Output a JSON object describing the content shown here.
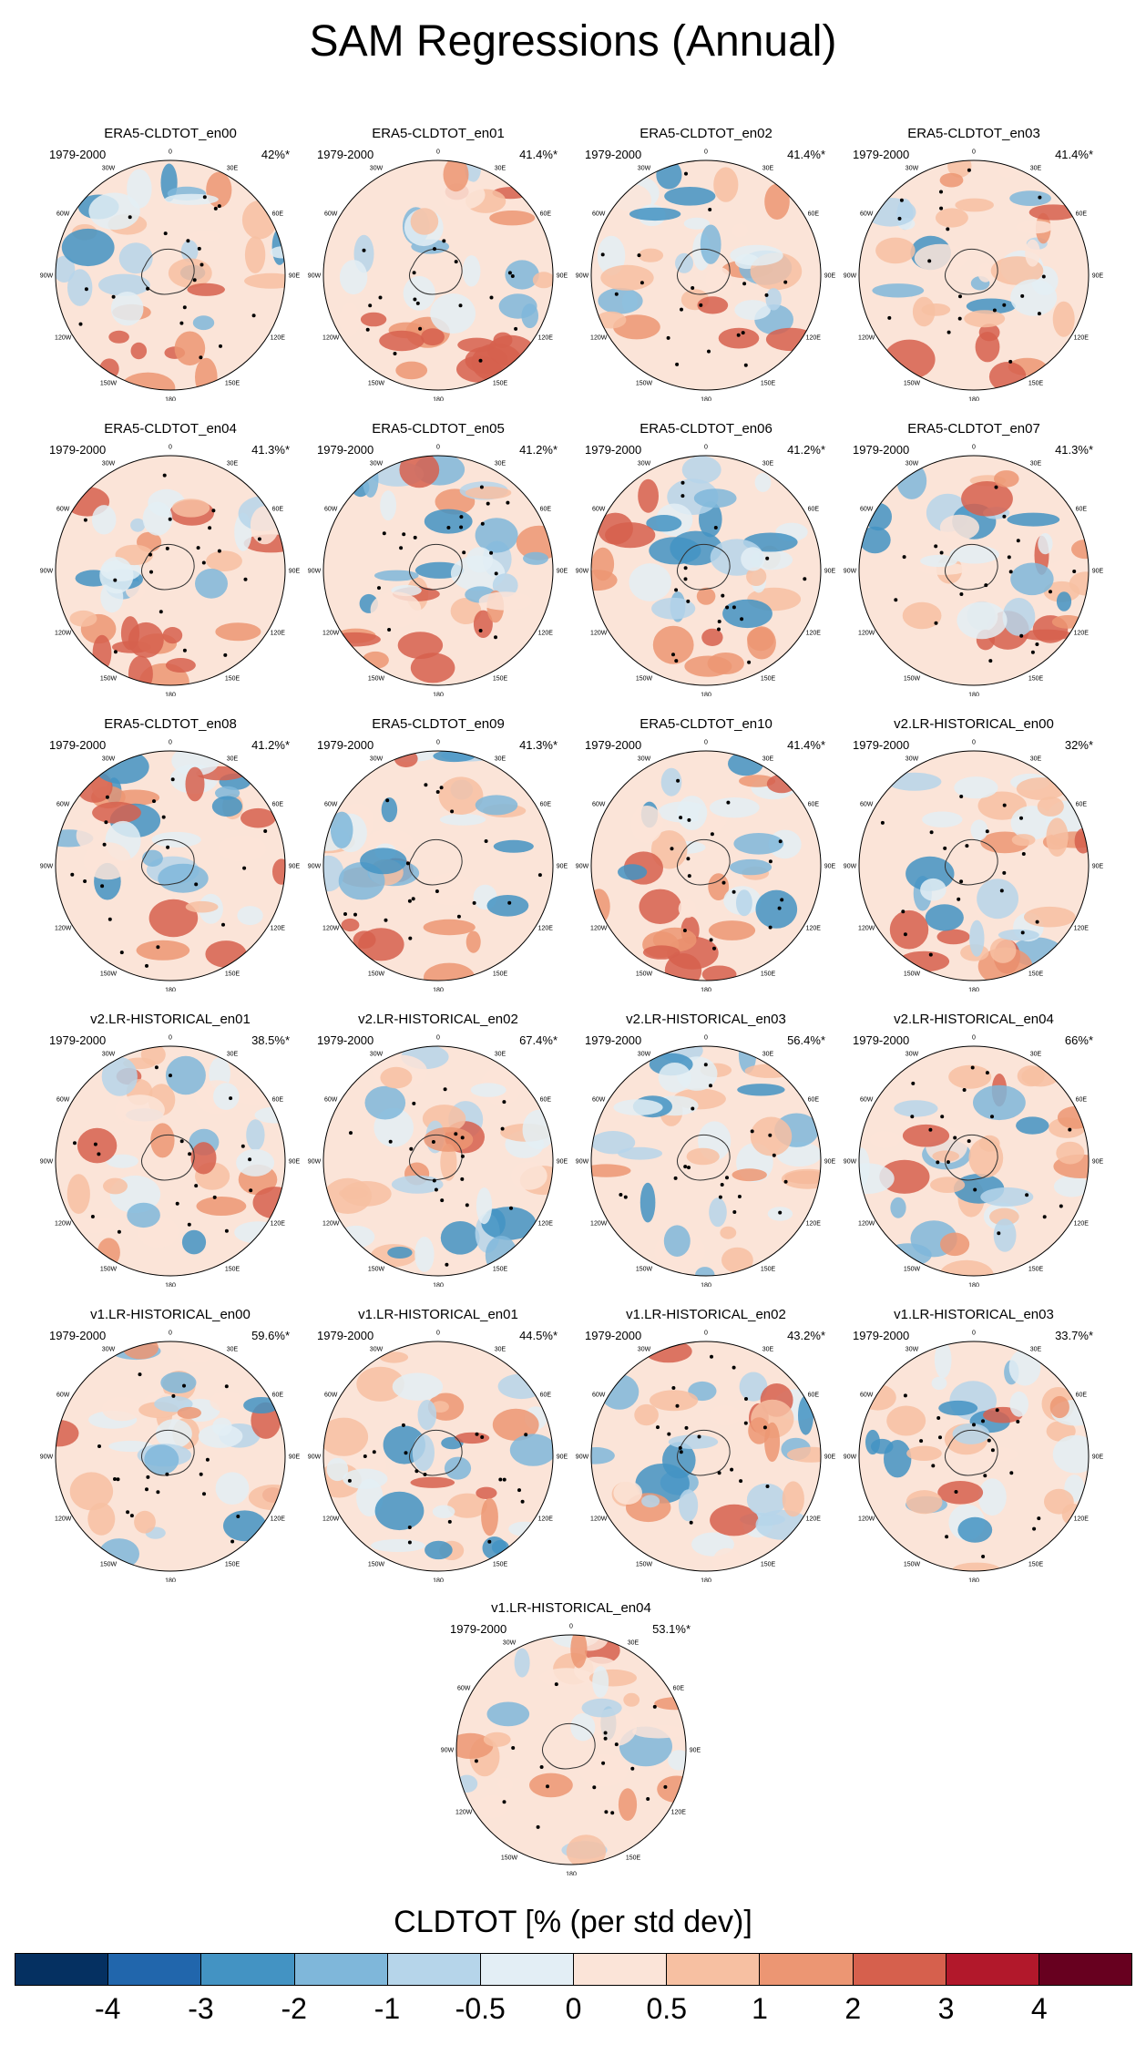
{
  "title": "SAM Regressions (Annual)",
  "chart_data": {
    "type": "heatmap",
    "projection": "south polar stereographic",
    "colorbar": {
      "label": "CLDTOT [% (per std dev)]",
      "levels": [
        "-4",
        "-3",
        "-2",
        "-1",
        "-0.5",
        "0",
        "0.5",
        "1",
        "2",
        "3",
        "4"
      ],
      "colors": [
        "#053061",
        "#2166ac",
        "#4393c3",
        "#7fb7da",
        "#b6d5ea",
        "#e3eef5",
        "#fbe4d8",
        "#f7c0a2",
        "#ec9673",
        "#d6604d",
        "#b2182b",
        "#67001f"
      ]
    },
    "longitude_labels": [
      "0",
      "30E",
      "60E",
      "90E",
      "120E",
      "150E",
      "180",
      "150W",
      "120W",
      "90W",
      "60W",
      "30W"
    ],
    "panels": [
      {
        "title": "ERA5-CLDTOT_en00",
        "period": "1979-2000",
        "pct": "42%*"
      },
      {
        "title": "ERA5-CLDTOT_en01",
        "period": "1979-2000",
        "pct": "41.4%*"
      },
      {
        "title": "ERA5-CLDTOT_en02",
        "period": "1979-2000",
        "pct": "41.4%*"
      },
      {
        "title": "ERA5-CLDTOT_en03",
        "period": "1979-2000",
        "pct": "41.4%*"
      },
      {
        "title": "ERA5-CLDTOT_en04",
        "period": "1979-2000",
        "pct": "41.3%*"
      },
      {
        "title": "ERA5-CLDTOT_en05",
        "period": "1979-2000",
        "pct": "41.2%*"
      },
      {
        "title": "ERA5-CLDTOT_en06",
        "period": "1979-2000",
        "pct": "41.2%*"
      },
      {
        "title": "ERA5-CLDTOT_en07",
        "period": "1979-2000",
        "pct": "41.3%*"
      },
      {
        "title": "ERA5-CLDTOT_en08",
        "period": "1979-2000",
        "pct": "41.2%*"
      },
      {
        "title": "ERA5-CLDTOT_en09",
        "period": "1979-2000",
        "pct": "41.3%*"
      },
      {
        "title": "ERA5-CLDTOT_en10",
        "period": "1979-2000",
        "pct": "41.4%*"
      },
      {
        "title": "v2.LR-HISTORICAL_en00",
        "period": "1979-2000",
        "pct": "32%*"
      },
      {
        "title": "v2.LR-HISTORICAL_en01",
        "period": "1979-2000",
        "pct": "38.5%*"
      },
      {
        "title": "v2.LR-HISTORICAL_en02",
        "period": "1979-2000",
        "pct": "67.4%*"
      },
      {
        "title": "v2.LR-HISTORICAL_en03",
        "period": "1979-2000",
        "pct": "56.4%*"
      },
      {
        "title": "v2.LR-HISTORICAL_en04",
        "period": "1979-2000",
        "pct": "66%*"
      },
      {
        "title": "v1.LR-HISTORICAL_en00",
        "period": "1979-2000",
        "pct": "59.6%*"
      },
      {
        "title": "v1.LR-HISTORICAL_en01",
        "period": "1979-2000",
        "pct": "44.5%*"
      },
      {
        "title": "v1.LR-HISTORICAL_en02",
        "period": "1979-2000",
        "pct": "43.2%*"
      },
      {
        "title": "v1.LR-HISTORICAL_en03",
        "period": "1979-2000",
        "pct": "33.7%*"
      },
      {
        "title": "v1.LR-HISTORICAL_en04",
        "period": "1979-2000",
        "pct": "53.1%*"
      }
    ]
  }
}
